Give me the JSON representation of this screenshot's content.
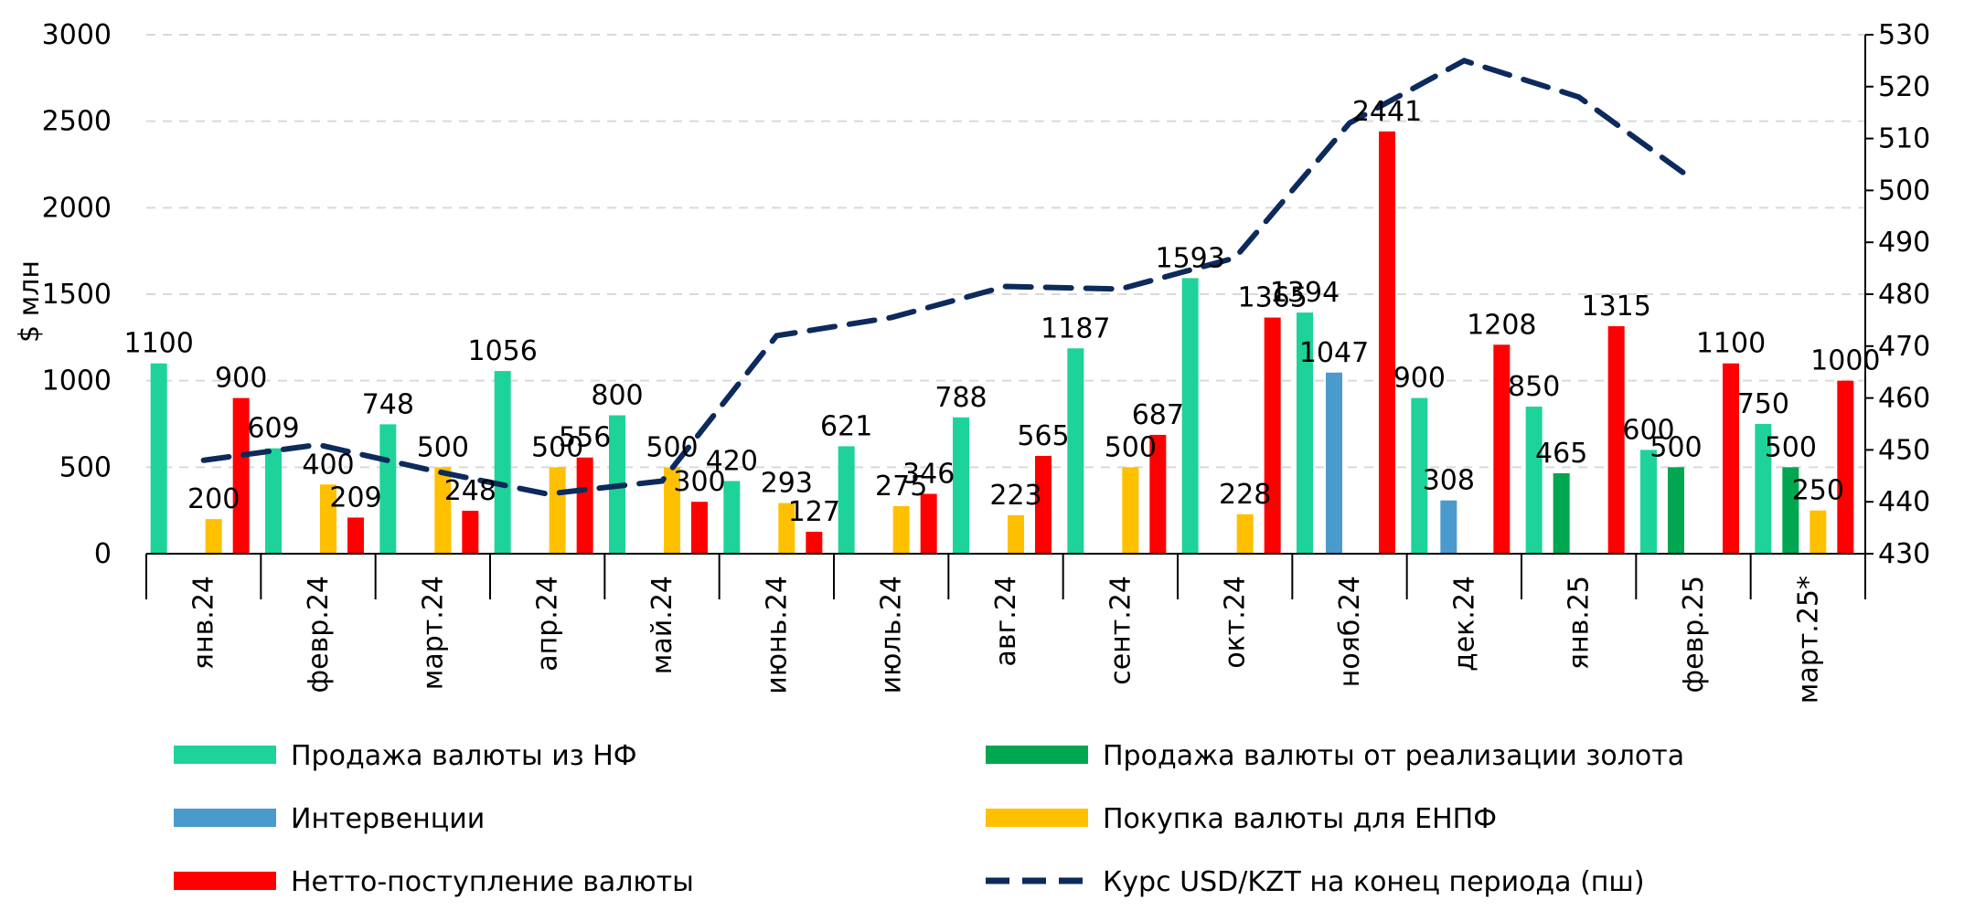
{
  "chart_data": {
    "type": "bar",
    "ylabel": "$ млн",
    "ylim": [
      0,
      3000
    ],
    "yticks": [
      0,
      500,
      1000,
      1500,
      2000,
      2500,
      3000
    ],
    "y2lim": [
      430,
      530
    ],
    "y2ticks": [
      430,
      440,
      450,
      460,
      470,
      480,
      490,
      500,
      510,
      520,
      530
    ],
    "grid": true,
    "legend_position": "bottom",
    "categories": [
      "янв.24",
      "февр.24",
      "март.24",
      "апр.24",
      "май.24",
      "июнь.24",
      "июль.24",
      "авг.24",
      "сент.24",
      "окт.24",
      "нояб.24",
      "дек.24",
      "янв.25",
      "февр.25",
      "март.25*"
    ],
    "series": [
      {
        "name": "Продажа валюты из НФ",
        "type": "bar",
        "color": "#1ED39A",
        "values": [
          1100,
          609,
          748,
          1056,
          800,
          420,
          621,
          788,
          1187,
          1593,
          1394,
          900,
          850,
          600,
          750
        ]
      },
      {
        "name": "Продажа валюты от реализации золота",
        "type": "bar",
        "color": "#00A650",
        "values": [
          null,
          null,
          null,
          null,
          null,
          null,
          null,
          null,
          null,
          null,
          null,
          null,
          465,
          500,
          500
        ]
      },
      {
        "name": "Интервенции",
        "type": "bar",
        "color": "#4A9ACD",
        "values": [
          null,
          null,
          null,
          null,
          null,
          null,
          null,
          null,
          null,
          null,
          1047,
          308,
          null,
          null,
          null
        ]
      },
      {
        "name": "Покупка валюты для ЕНПФ",
        "type": "bar",
        "color": "#FFC000",
        "values": [
          200,
          400,
          500,
          500,
          500,
          293,
          275,
          223,
          500,
          228,
          null,
          null,
          null,
          null,
          250
        ]
      },
      {
        "name": "Нетто-поступление валюты",
        "type": "bar",
        "color": "#FF0000",
        "values": [
          900,
          209,
          248,
          556,
          300,
          127,
          346,
          565,
          687,
          1365,
          2441,
          1208,
          1315,
          1100,
          1000
        ]
      },
      {
        "name": "Курс USD/KZT на конец периода (пш)",
        "type": "line",
        "axis": "secondary",
        "color": "#0D2A5C",
        "values": [
          448,
          451,
          446,
          441.5,
          444,
          472,
          475.5,
          481.5,
          481,
          487,
          513,
          525,
          518,
          502,
          null
        ]
      }
    ]
  }
}
